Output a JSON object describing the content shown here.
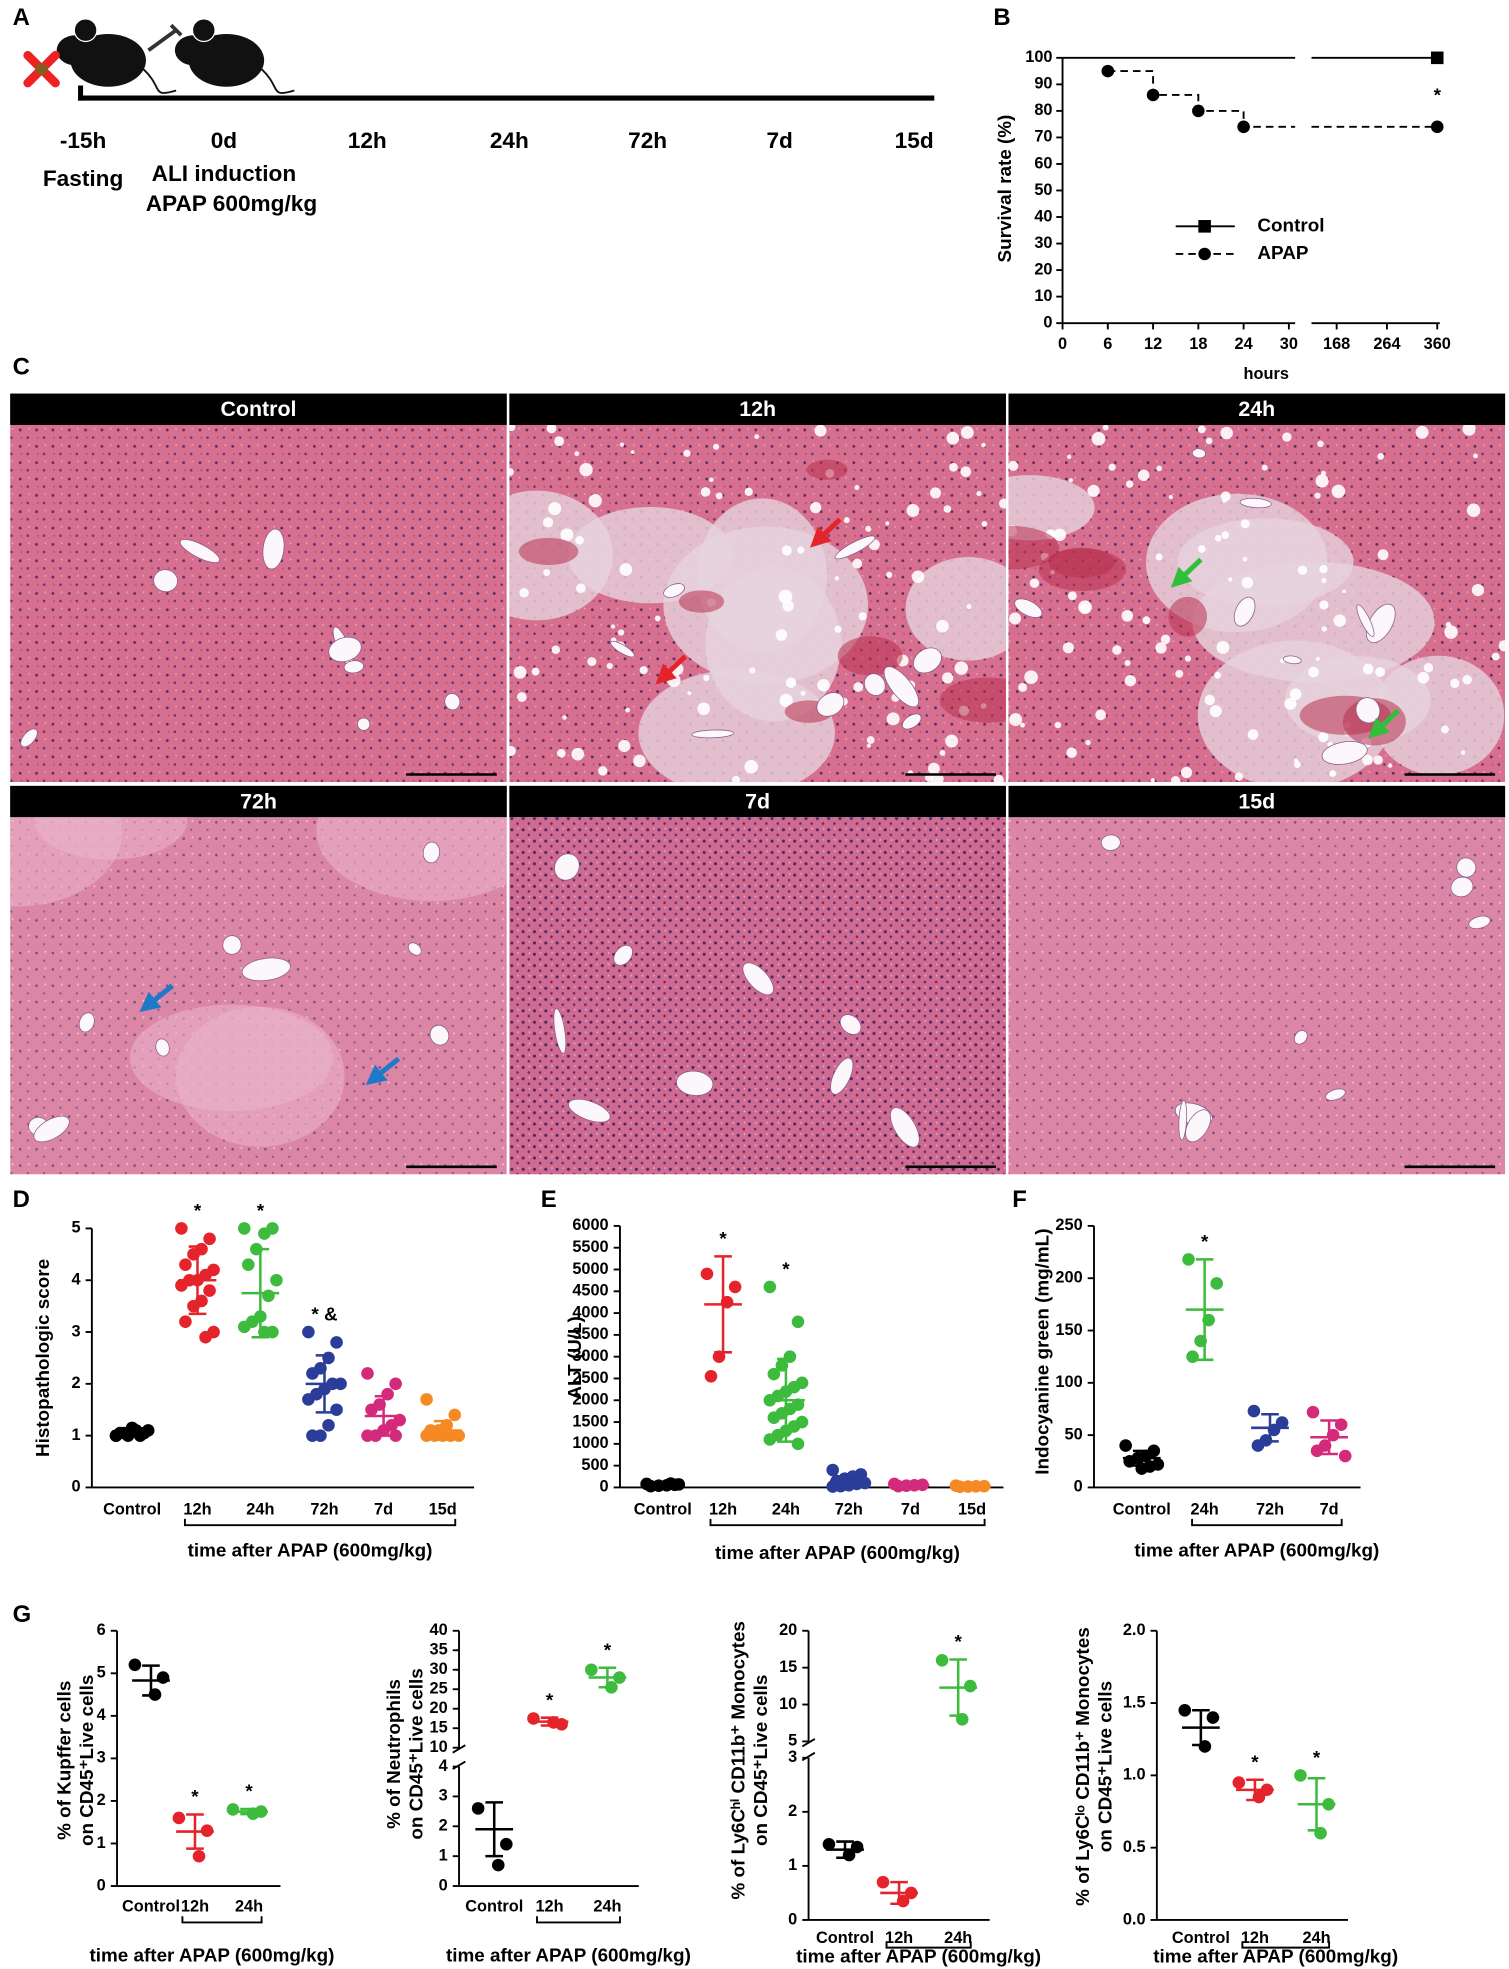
{
  "panel_labels": [
    "A",
    "B",
    "C",
    "D",
    "E",
    "F",
    "G"
  ],
  "timeline": {
    "ticks": [
      "-15h",
      "0d",
      "12h",
      "24h",
      "72h",
      "7d",
      "15d"
    ],
    "notes": [
      "Fasting",
      "ALI induction",
      "APAP 600mg/kg"
    ]
  },
  "histology": {
    "panels": [
      "Control",
      "12h",
      "24h",
      "72h",
      "7d",
      "15d"
    ]
  },
  "chart_data": [
    {
      "type": "survival",
      "ylabel": "Survival rate (%)",
      "xlabel": "hours",
      "ylim": [
        0,
        100
      ],
      "yticks": [
        0,
        10,
        20,
        30,
        40,
        50,
        60,
        70,
        80,
        90,
        100
      ],
      "x_segments": [
        {
          "xlim": [
            0,
            30
          ],
          "xticks": [
            0,
            6,
            12,
            18,
            24,
            30
          ]
        },
        {
          "xlim": [
            120,
            360
          ],
          "xticks": [
            168,
            264,
            360
          ]
        }
      ],
      "legend": "center",
      "series": [
        {
          "name": "Control",
          "color": "#000000",
          "marker": "square",
          "dash": false,
          "x": [
            0,
            360
          ],
          "values": [
            100,
            100
          ]
        },
        {
          "name": "APAP",
          "color": "#000000",
          "marker": "circle",
          "dash": true,
          "x": [
            6,
            12,
            18,
            24,
            360
          ],
          "values": [
            95,
            86,
            80,
            74,
            74
          ]
        }
      ],
      "annotations": [
        {
          "text": "*",
          "x": 360
        }
      ]
    },
    {
      "type": "dot",
      "ylabel": [
        "Histopathologic score"
      ],
      "xlabel": "time after APAP (600mg/kg)",
      "categories": [
        "Control",
        "12h",
        "24h",
        "72h",
        "7d",
        "15d"
      ],
      "colors": [
        "#000000",
        "#e5232b",
        "#3cbb3c",
        "#2a3d98",
        "#d42a7c",
        "#f58a24"
      ],
      "points": [
        [
          1.0,
          1.05,
          1.1,
          1.0,
          1.05,
          1.1,
          1.0,
          1.15,
          1.05,
          1.0
        ],
        [
          5.0,
          4.8,
          4.6,
          4.5,
          4.3,
          4.2,
          4.1,
          4.0,
          4.0,
          3.9,
          3.8,
          3.6,
          3.5,
          3.2,
          3.0,
          2.9
        ],
        [
          5.0,
          5.0,
          4.9,
          4.6,
          4.3,
          4.0,
          3.7,
          3.3,
          3.2,
          3.1,
          3.0,
          3.0
        ],
        [
          3.0,
          2.8,
          2.5,
          2.3,
          2.2,
          2.0,
          2.0,
          1.9,
          1.8,
          1.7,
          1.5,
          1.2,
          1.0,
          1.0
        ],
        [
          2.2,
          2.0,
          1.8,
          1.6,
          1.5,
          1.3,
          1.2,
          1.1,
          1.0,
          1.0,
          1.0
        ],
        [
          1.7,
          1.4,
          1.2,
          1.1,
          1.1,
          1.0,
          1.0,
          1.0,
          1.0,
          1.0
        ]
      ],
      "means": [
        1.05,
        4.0,
        3.75,
        2.0,
        1.38,
        1.1
      ],
      "sds": [
        0.06,
        0.65,
        0.85,
        0.55,
        0.38,
        0.18
      ],
      "ylim": [
        0,
        5
      ],
      "yticks": [
        0,
        1,
        2,
        3,
        4,
        5
      ],
      "annotations": [
        {
          "category": "12h",
          "text": "*"
        },
        {
          "category": "24h",
          "text": "*"
        },
        {
          "category": "72h",
          "text": "* &"
        }
      ]
    },
    {
      "type": "dot",
      "ylabel": [
        "ALT (U/L)"
      ],
      "xlabel": "time after APAP (600mg/kg)",
      "categories": [
        "Control",
        "12h",
        "24h",
        "72h",
        "7d",
        "15d"
      ],
      "colors": [
        "#000000",
        "#e5232b",
        "#3cbb3c",
        "#2a3d98",
        "#d42a7c",
        "#f58a24"
      ],
      "points": [
        [
          80,
          60,
          50,
          40,
          30,
          70,
          90
        ],
        [
          4900,
          4600,
          4250,
          3000,
          2550
        ],
        [
          4600,
          3800,
          3000,
          2800,
          2600,
          2400,
          2300,
          2200,
          2100,
          2000,
          1900,
          1800,
          1700,
          1600,
          1500,
          1400,
          1300,
          1200,
          1100,
          1000
        ],
        [
          400,
          300,
          250,
          200,
          150,
          100,
          80,
          50,
          30,
          20
        ],
        [
          80,
          60,
          50,
          40,
          30
        ],
        [
          40,
          30,
          25,
          20,
          15
        ]
      ],
      "means": [
        60,
        4200,
        2000,
        150,
        50,
        25
      ],
      "sds": [
        25,
        1100,
        950,
        130,
        20,
        10
      ],
      "ylim": [
        0,
        6000
      ],
      "yticks": [
        0,
        500,
        1000,
        1500,
        2000,
        2500,
        3000,
        3500,
        4000,
        4500,
        5000,
        5500,
        6000
      ],
      "annotations": [
        {
          "category": "12h",
          "text": "*"
        },
        {
          "category": "24h",
          "text": "*"
        }
      ]
    },
    {
      "type": "dot",
      "ylabel": [
        "Indocyanine green (mg/mL)"
      ],
      "xlabel": "time after APAP (600mg/kg)",
      "categories": [
        "Control",
        "24h",
        "72h",
        "7d"
      ],
      "colors": [
        "#000000",
        "#3cbb3c",
        "#2a3d98",
        "#d42a7c"
      ],
      "points": [
        [
          40,
          35,
          30,
          28,
          25,
          22,
          20,
          18
        ],
        [
          218,
          195,
          160,
          140,
          125
        ],
        [
          73,
          62,
          55,
          45,
          40
        ],
        [
          72,
          60,
          50,
          40,
          35,
          30
        ]
      ],
      "means": [
        28,
        170,
        57,
        48
      ],
      "sds": [
        7,
        48,
        13,
        16
      ],
      "ylim": [
        0,
        250
      ],
      "yticks": [
        0,
        50,
        100,
        150,
        200,
        250
      ],
      "annotations": [
        {
          "category": "24h",
          "text": "*"
        }
      ]
    },
    {
      "type": "dot",
      "ylabel": [
        "% of Kupffer cells",
        "on CD45⁺Live cells"
      ],
      "xlabel": "time after APAP (600mg/kg)",
      "categories": [
        "Control",
        "12h",
        "24h"
      ],
      "colors": [
        "#000000",
        "#e5232b",
        "#3cbb3c"
      ],
      "points": [
        [
          5.2,
          4.9,
          4.5
        ],
        [
          1.6,
          1.3,
          0.7
        ],
        [
          1.8,
          1.75,
          1.7
        ]
      ],
      "means": [
        4.83,
        1.28,
        1.75
      ],
      "sds": [
        0.35,
        0.4,
        0.06
      ],
      "ylim": [
        0,
        6
      ],
      "yticks": [
        0,
        1,
        2,
        3,
        4,
        5,
        6
      ],
      "annotations": [
        {
          "category": "12h",
          "text": "*"
        },
        {
          "category": "24h",
          "text": "*"
        }
      ]
    },
    {
      "type": "dot",
      "ylabel": [
        "% of Neutrophils",
        "on CD45⁺Live cells"
      ],
      "xlabel": "time after APAP (600mg/kg)",
      "categories": [
        "Control",
        "12h",
        "24h"
      ],
      "colors": [
        "#000000",
        "#e5232b",
        "#3cbb3c"
      ],
      "points": [
        [
          2.6,
          1.4,
          0.7
        ],
        [
          17.5,
          16,
          16.5
        ],
        [
          30,
          28,
          25.5
        ]
      ],
      "means": [
        1.9,
        16.7,
        28
      ],
      "sds": [
        0.9,
        1.0,
        2.5
      ],
      "y_segments": [
        {
          "ylim": [
            0,
            4
          ],
          "yticks": [
            0,
            1,
            2,
            3,
            4
          ]
        },
        {
          "ylim": [
            10,
            40
          ],
          "yticks": [
            10,
            15,
            20,
            25,
            30,
            35,
            40
          ]
        }
      ],
      "annotations": [
        {
          "category": "12h",
          "text": "*"
        },
        {
          "category": "24h",
          "text": "*"
        }
      ]
    },
    {
      "type": "dot",
      "ylabel": [
        "% of Ly6Cʰⁱ CD11b⁺ Monocytes",
        "on CD45⁺Live cells"
      ],
      "xlabel": "time after APAP (600mg/kg)",
      "categories": [
        "Control",
        "12h",
        "24h"
      ],
      "colors": [
        "#000000",
        "#e5232b",
        "#3cbb3c"
      ],
      "points": [
        [
          1.4,
          1.35,
          1.2
        ],
        [
          0.7,
          0.5,
          0.35
        ],
        [
          16,
          12.5,
          8
        ]
      ],
      "means": [
        1.3,
        0.5,
        12.3
      ],
      "sds": [
        0.15,
        0.2,
        3.8
      ],
      "y_segments": [
        {
          "ylim": [
            0,
            3
          ],
          "yticks": [
            0,
            1,
            2,
            3
          ]
        },
        {
          "ylim": [
            5,
            20
          ],
          "yticks": [
            5,
            10,
            15,
            20
          ]
        }
      ],
      "annotations": [
        {
          "category": "24h",
          "text": "*"
        }
      ]
    },
    {
      "type": "dot",
      "ylabel": [
        "% of Ly6Cˡᵒ CD11b⁺ Monocytes",
        "on CD45⁺Live cells"
      ],
      "xlabel": "time after APAP (600mg/kg)",
      "categories": [
        "Control",
        "12h",
        "24h"
      ],
      "colors": [
        "#000000",
        "#e5232b",
        "#3cbb3c"
      ],
      "points": [
        [
          1.45,
          1.4,
          1.2
        ],
        [
          0.95,
          0.9,
          0.85
        ],
        [
          1.0,
          0.8,
          0.6
        ]
      ],
      "means": [
        1.33,
        0.9,
        0.8
      ],
      "sds": [
        0.12,
        0.07,
        0.18
      ],
      "ylim": [
        0,
        2
      ],
      "yticks": [
        {
          "value": 0,
          "label": "0.0"
        },
        0.5,
        {
          "value": 1,
          "label": "1.0"
        },
        1.5,
        {
          "value": 2,
          "label": "2.0"
        }
      ],
      "annotations": [
        {
          "category": "12h",
          "text": "*"
        },
        {
          "category": "24h",
          "text": "*"
        }
      ]
    }
  ]
}
